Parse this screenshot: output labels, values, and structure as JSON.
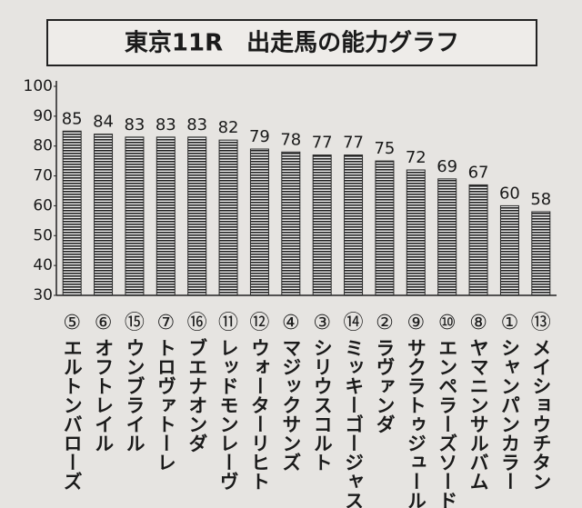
{
  "chart_data": {
    "type": "bar",
    "title": "東京11R　出走馬の能力グラフ",
    "horse_numbers": [
      "⑤",
      "⑥",
      "⑮",
      "⑦",
      "⑯",
      "⑪",
      "⑫",
      "④",
      "③",
      "⑭",
      "②",
      "⑨",
      "⑩",
      "⑧",
      "①",
      "⑬"
    ],
    "categories": [
      "エルトンバローズ",
      "オフトレイル",
      "ウンブライル",
      "トロヴァトーレ",
      "ブエナオンダ",
      "レッドモンレーヴ",
      "ウォーターリヒト",
      "マジックサンズ",
      "シリウスコルト",
      "ミッキーゴージャス",
      "ラヴァンダ",
      "サクラトゥジュール",
      "エンペラーズソード",
      "ヤマニンサルバム",
      "シャンパンカラー",
      "メイショウチタン"
    ],
    "values": [
      85,
      84,
      83,
      83,
      83,
      82,
      79,
      78,
      77,
      77,
      75,
      72,
      69,
      67,
      60,
      58
    ],
    "color": "#2a2a2a",
    "ylim": [
      30,
      100
    ],
    "yticks": [
      30,
      40,
      50,
      60,
      70,
      80,
      90,
      100
    ],
    "grid": false
  }
}
